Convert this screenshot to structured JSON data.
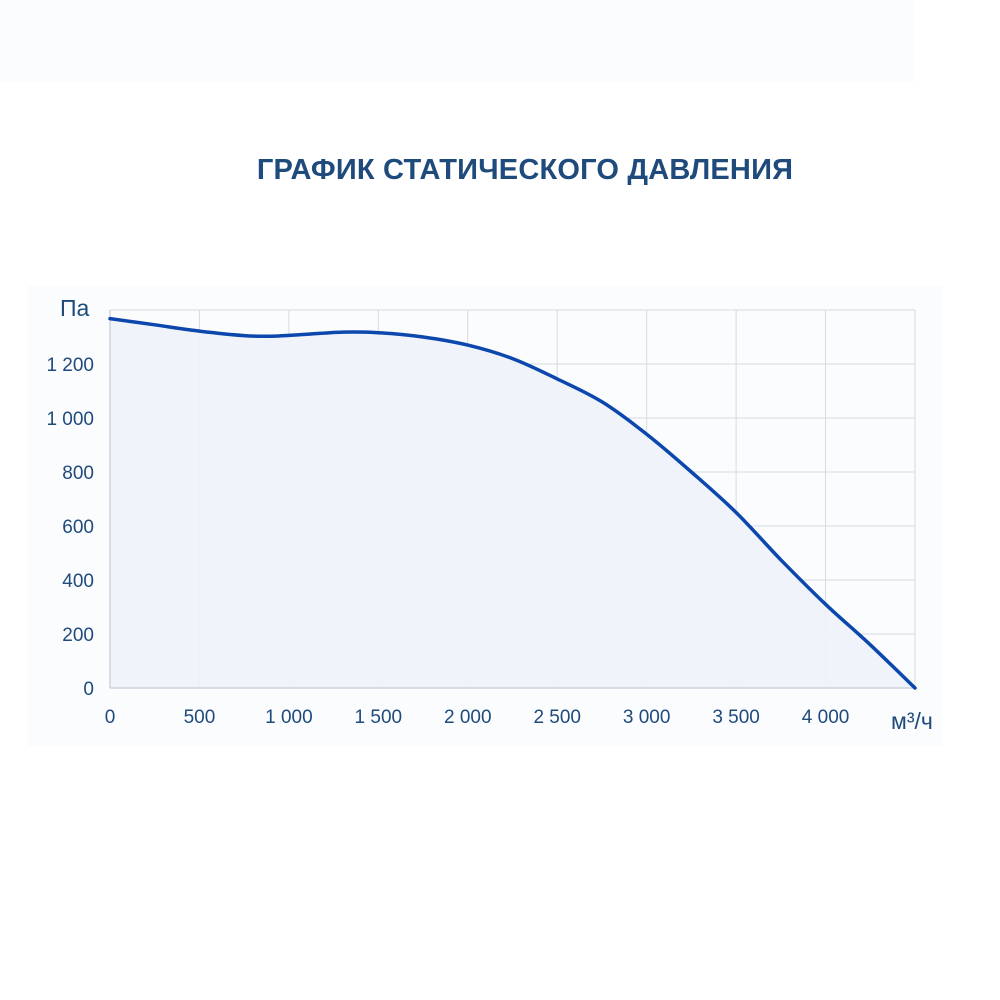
{
  "chart_data": {
    "type": "area",
    "title": "ГРАФИК СТАТИЧЕСКОГО ДАВЛЕНИЯ",
    "ylabel": "Па",
    "xlabel": "м³/ч",
    "xlim": [
      0,
      4500
    ],
    "ylim": [
      0,
      1400
    ],
    "x_ticks": [
      0,
      500,
      1000,
      1500,
      2000,
      2500,
      3000,
      3500,
      4000
    ],
    "x_tick_labels": [
      "0",
      "500",
      "1 000",
      "1 500",
      "2 000",
      "2 500",
      "3 000",
      "3 500",
      "4 000"
    ],
    "y_ticks": [
      0,
      200,
      400,
      600,
      800,
      1000,
      1200
    ],
    "y_tick_labels": [
      "0",
      "200",
      "400",
      "600",
      "800",
      "1 000",
      "1 200"
    ],
    "grid": true,
    "colors": {
      "line": "#0b47ad",
      "fill": "#eef3fa",
      "grid": "#d5dbe3",
      "text": "#1e4a7c"
    },
    "series": [
      {
        "x": [
          0,
          250,
          500,
          750,
          900,
          1100,
          1300,
          1500,
          1750,
          2000,
          2250,
          2500,
          2750,
          3000,
          3250,
          3500,
          3750,
          4000,
          4250,
          4500
        ],
        "y": [
          1368,
          1345,
          1322,
          1305,
          1303,
          1310,
          1318,
          1316,
          1300,
          1270,
          1220,
          1145,
          1060,
          940,
          800,
          650,
          475,
          310,
          160,
          0
        ]
      }
    ]
  }
}
